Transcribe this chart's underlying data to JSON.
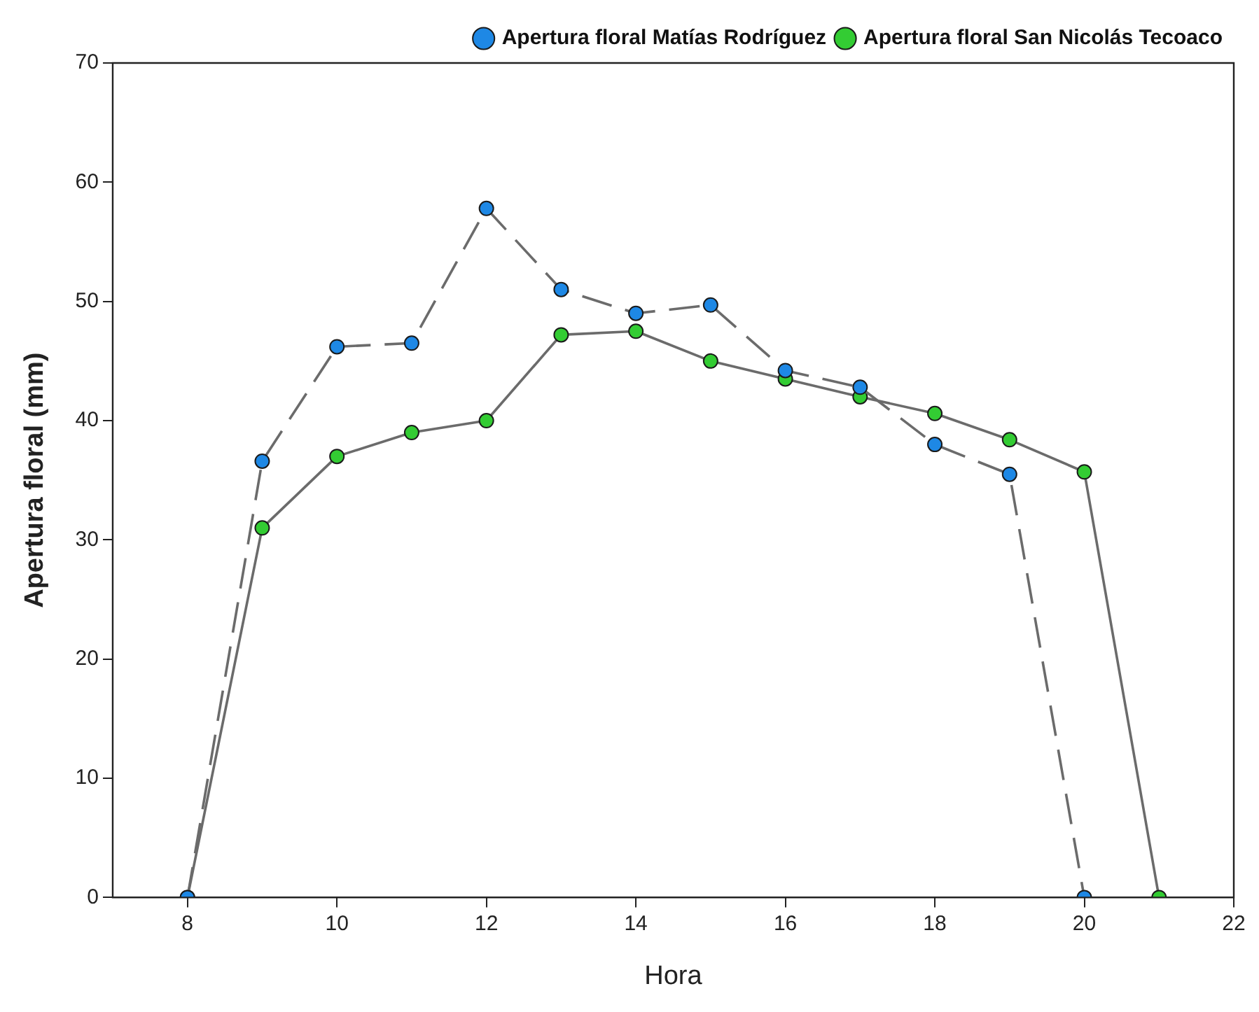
{
  "chart_data": {
    "type": "line",
    "xlabel": "Hora",
    "ylabel": "Apertura floral (mm)",
    "x": [
      8,
      9,
      10,
      11,
      12,
      13,
      14,
      15,
      16,
      17,
      18,
      19,
      20,
      21
    ],
    "xlim": [
      7,
      22
    ],
    "xticks": [
      8,
      10,
      12,
      14,
      16,
      18,
      20,
      22
    ],
    "ylim": [
      0,
      70
    ],
    "yticks": [
      0,
      10,
      20,
      30,
      40,
      50,
      60,
      70
    ],
    "grid": false,
    "legend": "top right",
    "marker": "circle",
    "series": [
      {
        "name": "Apertura floral San Nicolás Tecoaco",
        "color": "#33cc33",
        "line_style": "solid",
        "values": [
          0,
          31,
          37,
          39,
          40,
          47.2,
          47.5,
          45,
          43.5,
          42,
          40.6,
          38.4,
          35.7,
          0
        ]
      },
      {
        "name": "Apertura floral Matías Rodríguez",
        "color": "#1e88e5",
        "line_style": "dashed",
        "values": [
          0,
          36.6,
          46.2,
          46.5,
          57.8,
          51,
          49,
          49.7,
          44.2,
          42.8,
          38,
          35.5,
          0,
          null
        ]
      }
    ]
  }
}
